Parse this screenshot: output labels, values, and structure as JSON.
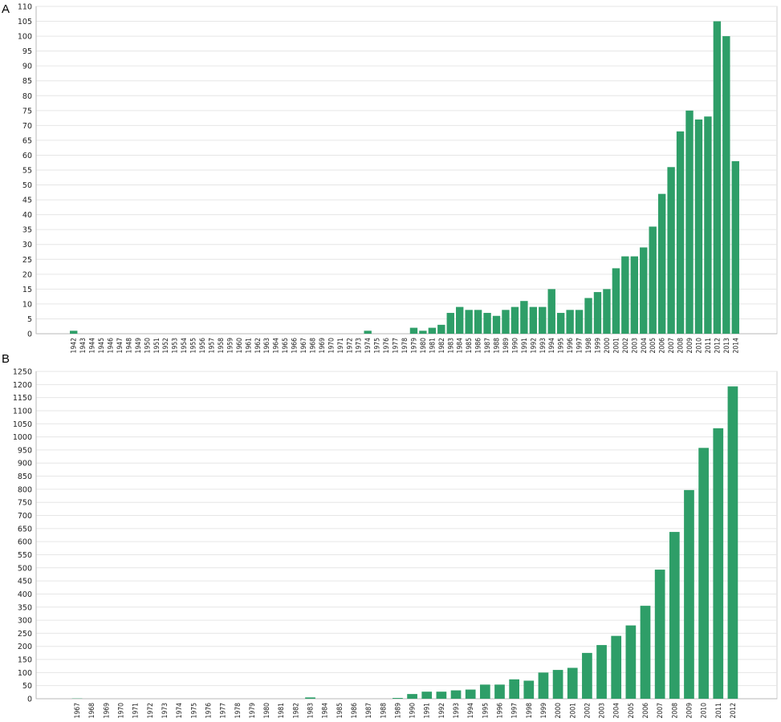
{
  "chart_data": [
    {
      "panel_label": "A",
      "type": "bar",
      "title": "",
      "xlabel": "",
      "ylabel": "",
      "ylim": [
        0,
        110
      ],
      "ytick_step": 5,
      "grid": true,
      "legend": "none",
      "bar_color": "#2e9e68",
      "categories": [
        "1942",
        "1943",
        "1944",
        "1945",
        "1946",
        "1947",
        "1948",
        "1949",
        "1950",
        "1951",
        "1952",
        "1953",
        "1954",
        "1955",
        "1956",
        "1957",
        "1958",
        "1959",
        "1960",
        "1961",
        "1962",
        "1963",
        "1964",
        "1965",
        "1966",
        "1967",
        "1968",
        "1969",
        "1970",
        "1971",
        "1972",
        "1973",
        "1974",
        "1975",
        "1976",
        "1977",
        "1978",
        "1979",
        "1980",
        "1981",
        "1982",
        "1983",
        "1984",
        "1985",
        "1986",
        "1987",
        "1988",
        "1989",
        "1990",
        "1991",
        "1992",
        "1993",
        "1994",
        "1995",
        "1996",
        "1997",
        "1998",
        "1999",
        "2000",
        "2001",
        "2002",
        "2003",
        "2004",
        "2005",
        "2006",
        "2007",
        "2008",
        "2009",
        "2010",
        "2011",
        "2012",
        "2013",
        "2014"
      ],
      "values": [
        1,
        0,
        0,
        0,
        0,
        0,
        0,
        0,
        0,
        0,
        0,
        0,
        0,
        0,
        0,
        0,
        0,
        0,
        0,
        0,
        0,
        0,
        0,
        0,
        0,
        0,
        0,
        0,
        0,
        0,
        0,
        0,
        1,
        0,
        0,
        0,
        0,
        2,
        1,
        2,
        3,
        7,
        9,
        8,
        8,
        7,
        6,
        8,
        9,
        11,
        9,
        9,
        15,
        7,
        8,
        8,
        12,
        14,
        15,
        22,
        26,
        26,
        29,
        36,
        47,
        56,
        68,
        75,
        72,
        73,
        105,
        100,
        58
      ]
    },
    {
      "panel_label": "B",
      "type": "bar",
      "title": "",
      "xlabel": "",
      "ylabel": "",
      "ylim": [
        0,
        1250
      ],
      "ytick_step": 50,
      "grid": true,
      "legend": "none",
      "bar_color": "#2e9e68",
      "categories": [
        "1967",
        "1968",
        "1969",
        "1970",
        "1971",
        "1972",
        "1973",
        "1974",
        "1975",
        "1976",
        "1977",
        "1978",
        "1979",
        "1980",
        "1981",
        "1982",
        "1983",
        "1984",
        "1985",
        "1986",
        "1987",
        "1988",
        "1989",
        "1990",
        "1991",
        "1992",
        "1993",
        "1994",
        "1995",
        "1996",
        "1997",
        "1998",
        "1999",
        "2000",
        "2001",
        "2002",
        "2003",
        "2004",
        "2005",
        "2006",
        "2007",
        "2008",
        "2009",
        "2010",
        "2011",
        "2012"
      ],
      "values": [
        1,
        0,
        0,
        0,
        0,
        0,
        0,
        0,
        0,
        0,
        0,
        0,
        0,
        0,
        0,
        0,
        5,
        0,
        0,
        0,
        0,
        0,
        3,
        18,
        27,
        27,
        32,
        35,
        54,
        54,
        74,
        69,
        100,
        110,
        118,
        175,
        205,
        240,
        280,
        355,
        493,
        637,
        797,
        958,
        1033,
        1193
      ]
    }
  ]
}
